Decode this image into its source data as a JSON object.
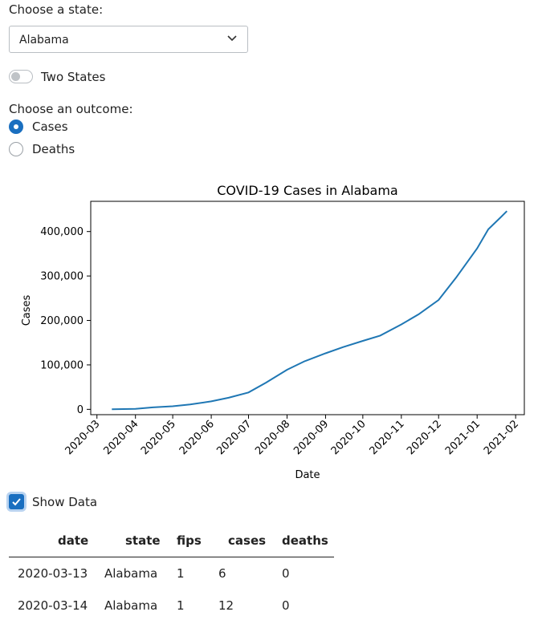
{
  "state_select": {
    "label": "Choose a state:",
    "value": "Alabama"
  },
  "two_states": {
    "label": "Two States",
    "on": false
  },
  "outcome": {
    "label": "Choose an outcome:",
    "options": [
      {
        "label": "Cases",
        "selected": true
      },
      {
        "label": "Deaths",
        "selected": false
      }
    ]
  },
  "show_data": {
    "label": "Show Data",
    "checked": true
  },
  "table": {
    "columns": [
      "date",
      "state",
      "fips",
      "cases",
      "deaths"
    ],
    "rows": [
      [
        "2020-03-13",
        "Alabama",
        "1",
        "6",
        "0"
      ],
      [
        "2020-03-14",
        "Alabama",
        "1",
        "12",
        "0"
      ]
    ]
  },
  "colors": {
    "accent": "#1a6fc0",
    "line": "#1f77b4"
  },
  "chart_data": {
    "type": "line",
    "title": "COVID-19 Cases in Alabama",
    "xlabel": "Date",
    "ylabel": "Cases",
    "ylim": [
      -12000,
      468000
    ],
    "xlim": [
      "2020-02-25",
      "2021-02-08"
    ],
    "yticks": [
      0,
      100000,
      200000,
      300000,
      400000
    ],
    "ytick_labels": [
      "0",
      "100,000",
      "200,000",
      "300,000",
      "400,000"
    ],
    "xticks": [
      "2020-03-01",
      "2020-04-01",
      "2020-05-01",
      "2020-06-01",
      "2020-07-01",
      "2020-08-01",
      "2020-09-01",
      "2020-10-01",
      "2020-11-01",
      "2020-12-01",
      "2021-01-01",
      "2021-02-01"
    ],
    "xtick_labels": [
      "2020-03",
      "2020-04",
      "2020-05",
      "2020-06",
      "2020-07",
      "2020-08",
      "2020-09",
      "2020-10",
      "2020-11",
      "2020-12",
      "2021-01",
      "2021-02"
    ],
    "grid": false,
    "series": [
      {
        "x": [
          "2020-03-13",
          "2020-04-01",
          "2020-04-15",
          "2020-05-01",
          "2020-05-15",
          "2020-06-01",
          "2020-06-15",
          "2020-07-01",
          "2020-07-15",
          "2020-08-01",
          "2020-08-15",
          "2020-09-01",
          "2020-09-15",
          "2020-10-01",
          "2020-10-15",
          "2020-11-01",
          "2020-11-15",
          "2020-12-01",
          "2020-12-15",
          "2021-01-01",
          "2021-01-10",
          "2021-01-20",
          "2021-01-25"
        ],
        "y": [
          6,
          1000,
          4500,
          7000,
          11000,
          18000,
          26000,
          38000,
          60000,
          89000,
          108000,
          126000,
          140000,
          154000,
          166000,
          191000,
          214000,
          246000,
          296000,
          362000,
          405000,
          432000,
          446000
        ]
      }
    ]
  }
}
